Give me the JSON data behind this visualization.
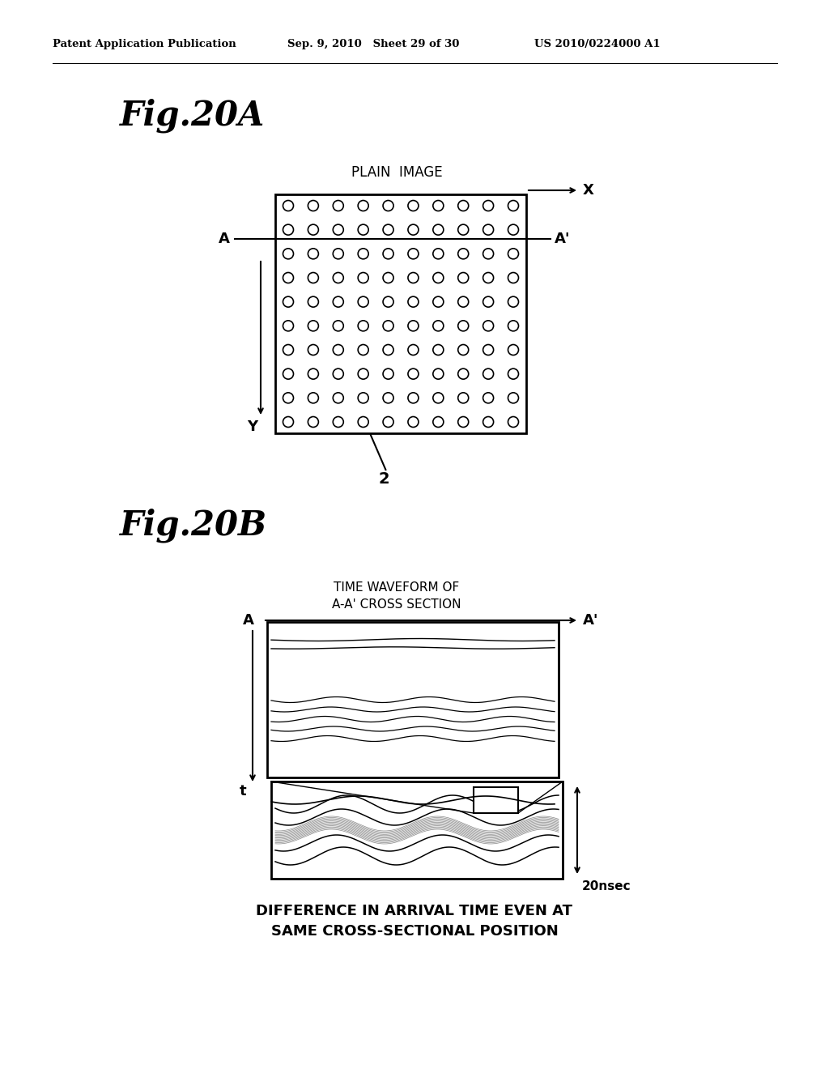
{
  "header_left": "Patent Application Publication",
  "header_mid": "Sep. 9, 2010   Sheet 29 of 30",
  "header_right": "US 2010/0224000 A1",
  "fig20a_label": "Fig.20A",
  "fig20b_label": "Fig.20B",
  "plain_image_label": "PLAIN  IMAGE",
  "x_label": "X",
  "y_label": "Y",
  "A_label": "A",
  "Aprime_label": "A'",
  "num_label": "2",
  "time_waveform_label": "TIME WAVEFORM OF\nA-A' CROSS SECTION",
  "t_label": "t",
  "nsec_label": "20nsec",
  "bottom_text1": "DIFFERENCE IN ARRIVAL TIME EVEN AT",
  "bottom_text2": "SAME CROSS-SECTIONAL POSITION",
  "bg_color": "#ffffff",
  "line_color": "#000000"
}
